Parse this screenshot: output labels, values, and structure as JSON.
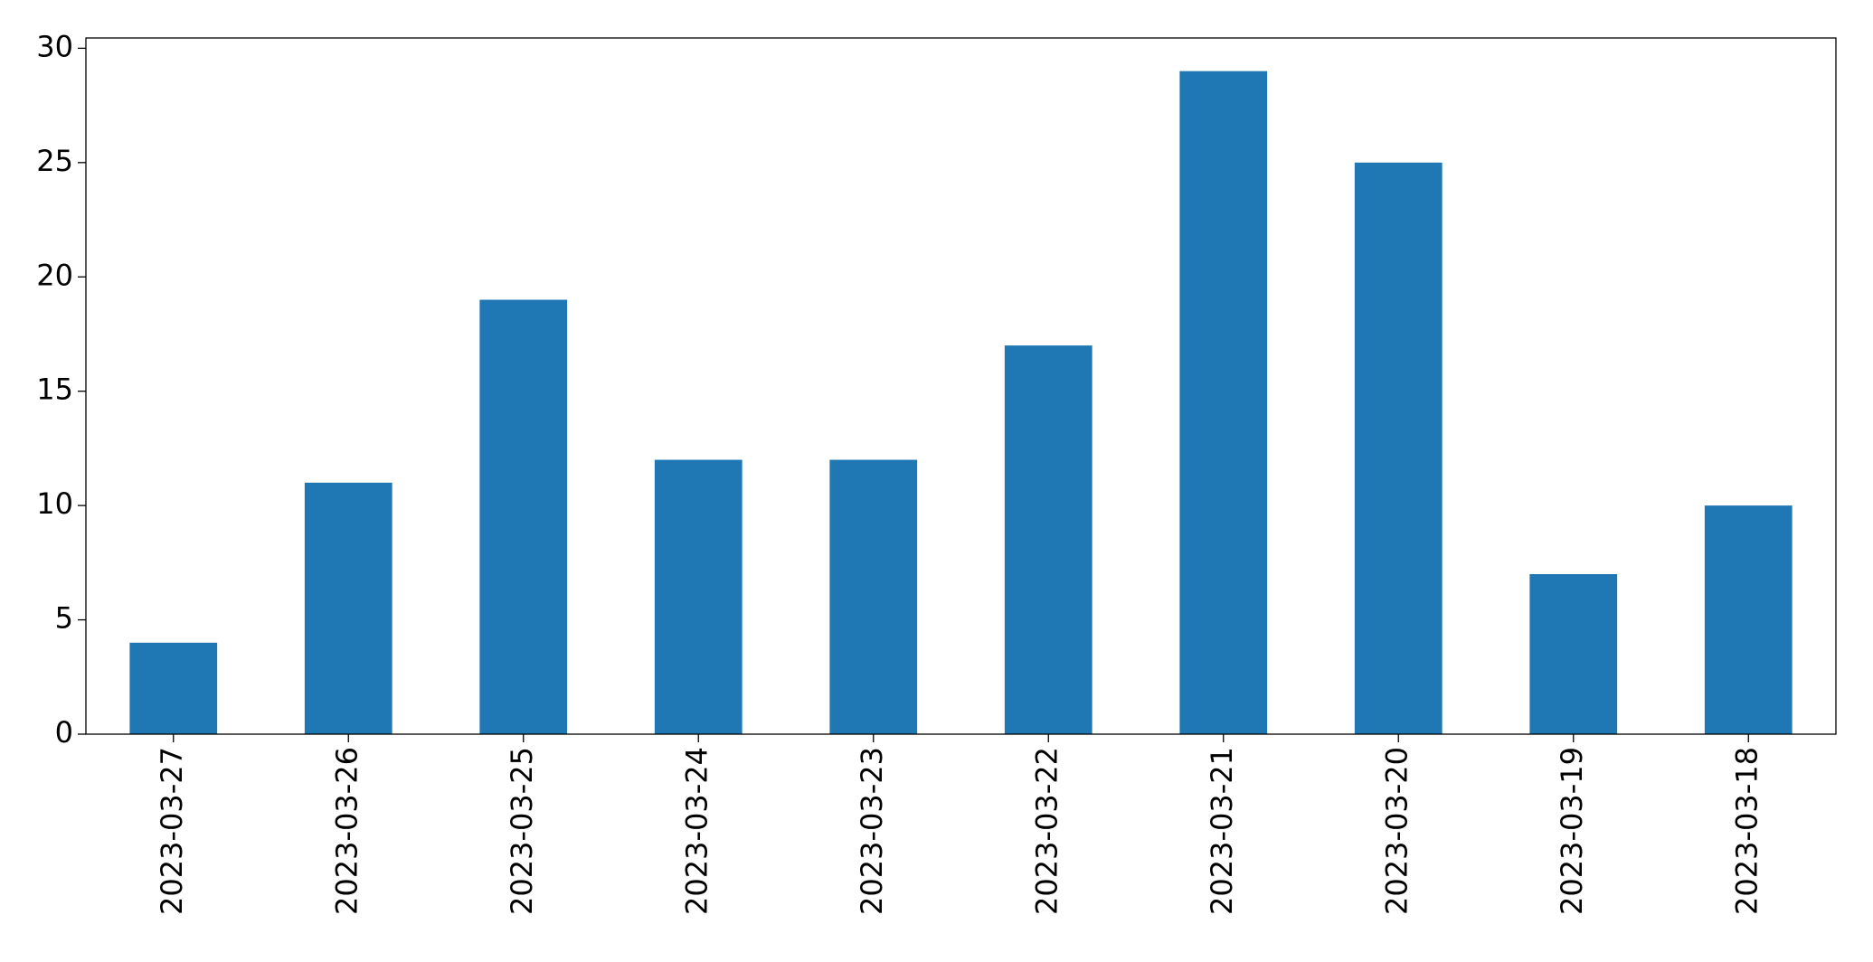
{
  "chart_data": {
    "type": "bar",
    "categories": [
      "2023-03-27",
      "2023-03-26",
      "2023-03-25",
      "2023-03-24",
      "2023-03-23",
      "2023-03-22",
      "2023-03-21",
      "2023-03-20",
      "2023-03-19",
      "2023-03-18"
    ],
    "values": [
      4,
      11,
      19,
      12,
      12,
      17,
      29,
      25,
      7,
      10
    ],
    "color": "#1f77b4",
    "ylim": [
      0,
      30.45
    ],
    "yticks": [
      0,
      5,
      10,
      15,
      20,
      25,
      30
    ],
    "grid": false
  }
}
